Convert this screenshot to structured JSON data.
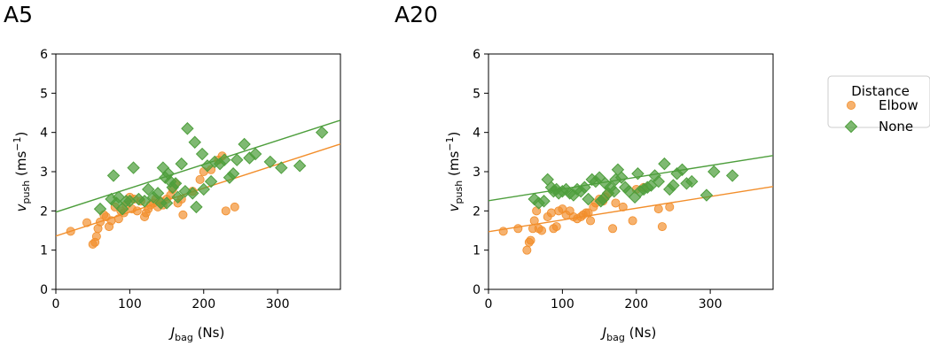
{
  "chart_data": [
    {
      "type": "scatter",
      "panel_label": "A5",
      "xlabel": {
        "main": "J",
        "sub": "bag",
        "unit": " (Ns)"
      },
      "ylabel": {
        "main": "v",
        "sub": "push",
        "unit_prefix": " (ms",
        "unit_sup": "−1",
        "unit_suffix": ")"
      },
      "xlim": [
        0,
        385
      ],
      "ylim": [
        0,
        6
      ],
      "xticks": [
        0,
        100,
        200,
        300
      ],
      "yticks": [
        0,
        1,
        2,
        3,
        4,
        5,
        6
      ],
      "grid": false,
      "series": [
        {
          "name": "Elbow",
          "marker": "circle",
          "color": "#f28e2b",
          "trend": {
            "intercept": 1.36,
            "slope": 0.00609
          },
          "points": [
            [
              20,
              1.48
            ],
            [
              42,
              1.7
            ],
            [
              50,
              1.15
            ],
            [
              53,
              1.2
            ],
            [
              55,
              1.35
            ],
            [
              57,
              1.55
            ],
            [
              60,
              1.72
            ],
            [
              65,
              1.9
            ],
            [
              68,
              1.85
            ],
            [
              72,
              1.6
            ],
            [
              75,
              1.75
            ],
            [
              80,
              2.1
            ],
            [
              85,
              1.8
            ],
            [
              88,
              2.0
            ],
            [
              92,
              1.95
            ],
            [
              95,
              2.15
            ],
            [
              100,
              2.35
            ],
            [
              103,
              2.05
            ],
            [
              106,
              2.3
            ],
            [
              110,
              2.0
            ],
            [
              115,
              2.25
            ],
            [
              120,
              1.85
            ],
            [
              122,
              1.95
            ],
            [
              125,
              2.05
            ],
            [
              128,
              2.15
            ],
            [
              132,
              2.2
            ],
            [
              135,
              2.3
            ],
            [
              138,
              2.1
            ],
            [
              142,
              2.25
            ],
            [
              145,
              2.15
            ],
            [
              150,
              2.3
            ],
            [
              155,
              2.4
            ],
            [
              158,
              2.55
            ],
            [
              162,
              2.7
            ],
            [
              165,
              2.2
            ],
            [
              170,
              2.3
            ],
            [
              172,
              1.9
            ],
            [
              185,
              2.5
            ],
            [
              195,
              2.8
            ],
            [
              200,
              3.0
            ],
            [
              210,
              3.05
            ],
            [
              220,
              3.3
            ],
            [
              225,
              3.4
            ],
            [
              230,
              2.0
            ],
            [
              242,
              2.1
            ]
          ]
        },
        {
          "name": "None",
          "marker": "diamond",
          "color": "#4d9e3c",
          "trend": {
            "intercept": 1.97,
            "slope": 0.00608
          },
          "points": [
            [
              60,
              2.05
            ],
            [
              75,
              2.3
            ],
            [
              78,
              2.9
            ],
            [
              82,
              2.2
            ],
            [
              85,
              2.35
            ],
            [
              90,
              2.05
            ],
            [
              95,
              2.25
            ],
            [
              100,
              2.25
            ],
            [
              105,
              3.1
            ],
            [
              112,
              2.3
            ],
            [
              120,
              2.25
            ],
            [
              125,
              2.55
            ],
            [
              132,
              2.35
            ],
            [
              138,
              2.45
            ],
            [
              142,
              2.2
            ],
            [
              145,
              3.1
            ],
            [
              148,
              2.85
            ],
            [
              150,
              2.2
            ],
            [
              152,
              2.95
            ],
            [
              155,
              2.75
            ],
            [
              158,
              2.6
            ],
            [
              162,
              2.7
            ],
            [
              165,
              2.35
            ],
            [
              170,
              3.2
            ],
            [
              175,
              2.5
            ],
            [
              178,
              4.1
            ],
            [
              185,
              2.45
            ],
            [
              188,
              3.75
            ],
            [
              190,
              2.1
            ],
            [
              198,
              3.45
            ],
            [
              200,
              2.55
            ],
            [
              205,
              3.15
            ],
            [
              210,
              2.75
            ],
            [
              215,
              3.25
            ],
            [
              222,
              3.2
            ],
            [
              228,
              3.3
            ],
            [
              235,
              2.85
            ],
            [
              240,
              2.95
            ],
            [
              245,
              3.3
            ],
            [
              255,
              3.7
            ],
            [
              262,
              3.35
            ],
            [
              270,
              3.45
            ],
            [
              290,
              3.25
            ],
            [
              305,
              3.1
            ],
            [
              330,
              3.15
            ],
            [
              360,
              4.0
            ]
          ]
        }
      ]
    },
    {
      "type": "scatter",
      "panel_label": "A20",
      "xlabel": {
        "main": "J",
        "sub": "bag",
        "unit": " (Ns)"
      },
      "ylabel": {
        "main": "v",
        "sub": "push",
        "unit_prefix": " (ms",
        "unit_sup": "−1",
        "unit_suffix": ")"
      },
      "xlim": [
        0,
        385
      ],
      "ylim": [
        0,
        6
      ],
      "xticks": [
        0,
        100,
        200,
        300
      ],
      "yticks": [
        0,
        1,
        2,
        3,
        4,
        5,
        6
      ],
      "grid": false,
      "series": [
        {
          "name": "Elbow",
          "marker": "circle",
          "color": "#f28e2b",
          "trend": {
            "intercept": 1.47,
            "slope": 0.00299
          },
          "points": [
            [
              20,
              1.48
            ],
            [
              40,
              1.55
            ],
            [
              52,
              1.0
            ],
            [
              55,
              1.2
            ],
            [
              57,
              1.25
            ],
            [
              60,
              1.55
            ],
            [
              62,
              1.75
            ],
            [
              65,
              2.0
            ],
            [
              68,
              1.55
            ],
            [
              72,
              1.5
            ],
            [
              80,
              1.85
            ],
            [
              85,
              1.95
            ],
            [
              88,
              1.55
            ],
            [
              92,
              1.6
            ],
            [
              95,
              2.0
            ],
            [
              100,
              2.05
            ],
            [
              105,
              1.9
            ],
            [
              110,
              2.0
            ],
            [
              115,
              1.85
            ],
            [
              120,
              1.8
            ],
            [
              125,
              1.85
            ],
            [
              128,
              1.9
            ],
            [
              132,
              1.95
            ],
            [
              135,
              1.95
            ],
            [
              138,
              1.75
            ],
            [
              142,
              2.1
            ],
            [
              145,
              2.2
            ],
            [
              150,
              2.3
            ],
            [
              155,
              2.25
            ],
            [
              158,
              2.35
            ],
            [
              162,
              2.45
            ],
            [
              168,
              1.55
            ],
            [
              172,
              2.2
            ],
            [
              182,
              2.1
            ],
            [
              195,
              1.75
            ],
            [
              200,
              2.55
            ],
            [
              210,
              2.6
            ],
            [
              230,
              2.05
            ],
            [
              235,
              1.6
            ],
            [
              245,
              2.1
            ]
          ]
        },
        {
          "name": "None",
          "marker": "diamond",
          "color": "#4d9e3c",
          "trend": {
            "intercept": 2.26,
            "slope": 0.00299
          },
          "points": [
            [
              62,
              2.3
            ],
            [
              68,
              2.2
            ],
            [
              75,
              2.25
            ],
            [
              80,
              2.8
            ],
            [
              85,
              2.6
            ],
            [
              88,
              2.5
            ],
            [
              92,
              2.55
            ],
            [
              95,
              2.45
            ],
            [
              100,
              2.5
            ],
            [
              105,
              2.55
            ],
            [
              110,
              2.45
            ],
            [
              115,
              2.4
            ],
            [
              120,
              2.55
            ],
            [
              125,
              2.5
            ],
            [
              130,
              2.6
            ],
            [
              135,
              2.3
            ],
            [
              140,
              2.8
            ],
            [
              145,
              2.75
            ],
            [
              150,
              2.85
            ],
            [
              152,
              2.25
            ],
            [
              155,
              2.3
            ],
            [
              158,
              2.7
            ],
            [
              162,
              2.45
            ],
            [
              165,
              2.6
            ],
            [
              170,
              2.5
            ],
            [
              172,
              2.8
            ],
            [
              175,
              3.05
            ],
            [
              180,
              2.85
            ],
            [
              185,
              2.6
            ],
            [
              190,
              2.5
            ],
            [
              198,
              2.35
            ],
            [
              202,
              2.95
            ],
            [
              205,
              2.5
            ],
            [
              210,
              2.55
            ],
            [
              215,
              2.6
            ],
            [
              220,
              2.65
            ],
            [
              225,
              2.9
            ],
            [
              230,
              2.75
            ],
            [
              238,
              3.2
            ],
            [
              245,
              2.55
            ],
            [
              250,
              2.65
            ],
            [
              255,
              2.95
            ],
            [
              262,
              3.05
            ],
            [
              268,
              2.7
            ],
            [
              275,
              2.75
            ],
            [
              295,
              2.4
            ],
            [
              305,
              3.0
            ],
            [
              330,
              2.9
            ]
          ]
        }
      ]
    }
  ],
  "legend": {
    "title": "Distance",
    "placement": "right",
    "entries": [
      {
        "name": "Elbow",
        "marker": "circle",
        "color": "#f28e2b"
      },
      {
        "name": "None",
        "marker": "diamond",
        "color": "#4d9e3c"
      }
    ]
  }
}
